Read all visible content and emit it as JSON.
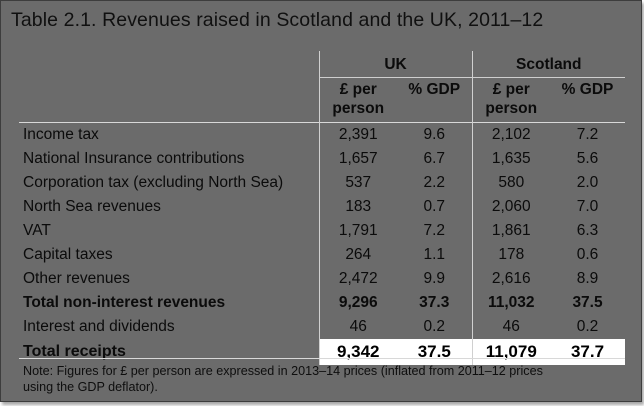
{
  "title": "Table 2.1. Revenues raised in Scotland and the UK, 2011–12",
  "groups": [
    "UK",
    "Scotland"
  ],
  "subheaders": {
    "per_person_line1": "£ per",
    "per_person_line2": "person",
    "gdp": "% GDP"
  },
  "rows": [
    {
      "label": "Income tax",
      "uk_pp": "2,391",
      "uk_gdp": "9.6",
      "sc_pp": "2,102",
      "sc_gdp": "7.2"
    },
    {
      "label": "National Insurance contributions",
      "uk_pp": "1,657",
      "uk_gdp": "6.7",
      "sc_pp": "1,635",
      "sc_gdp": "5.6"
    },
    {
      "label": "Corporation tax (excluding North Sea)",
      "uk_pp": "537",
      "uk_gdp": "2.2",
      "sc_pp": "580",
      "sc_gdp": "2.0"
    },
    {
      "label": "North Sea revenues",
      "uk_pp": "183",
      "uk_gdp": "0.7",
      "sc_pp": "2,060",
      "sc_gdp": "7.0"
    },
    {
      "label": "VAT",
      "uk_pp": "1,791",
      "uk_gdp": "7.2",
      "sc_pp": "1,861",
      "sc_gdp": "6.3"
    },
    {
      "label": "Capital taxes",
      "uk_pp": "264",
      "uk_gdp": "1.1",
      "sc_pp": "178",
      "sc_gdp": "0.6"
    },
    {
      "label": "Other revenues",
      "uk_pp": "2,472",
      "uk_gdp": "9.9",
      "sc_pp": "2,616",
      "sc_gdp": "8.9"
    },
    {
      "label": "Total non-interest revenues",
      "uk_pp": "9,296",
      "uk_gdp": "37.3",
      "sc_pp": "11,032",
      "sc_gdp": "37.5"
    },
    {
      "label": "Interest and dividends",
      "uk_pp": "46",
      "uk_gdp": "0.2",
      "sc_pp": "46",
      "sc_gdp": "0.2"
    },
    {
      "label": "Total receipts",
      "uk_pp": "9,342",
      "uk_gdp": "37.5",
      "sc_pp": "11,079",
      "sc_gdp": "37.7"
    }
  ],
  "note_line1": "Note: Figures for £ per person are expressed in 2013–14 prices (inflated from 2011–12 prices",
  "note_line2": "using the GDP deflator)."
}
